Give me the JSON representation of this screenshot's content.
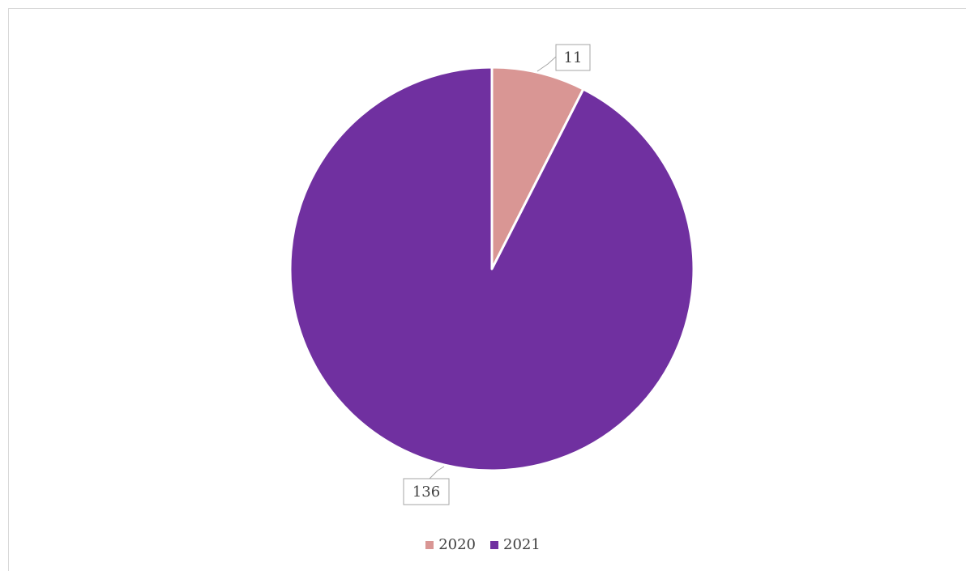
{
  "chart_data": {
    "type": "pie",
    "categories": [
      "2020",
      "2021"
    ],
    "values": [
      11,
      136
    ],
    "colors": [
      "#d99694",
      "#7030a0"
    ],
    "data_labels": [
      "11",
      "136"
    ],
    "legend_position": "bottom",
    "start_angle": "12 o'clock",
    "direction": "clockwise"
  },
  "legend": {
    "items": [
      {
        "label": "2020",
        "color": "#d99694"
      },
      {
        "label": "2021",
        "color": "#7030a0"
      }
    ]
  }
}
